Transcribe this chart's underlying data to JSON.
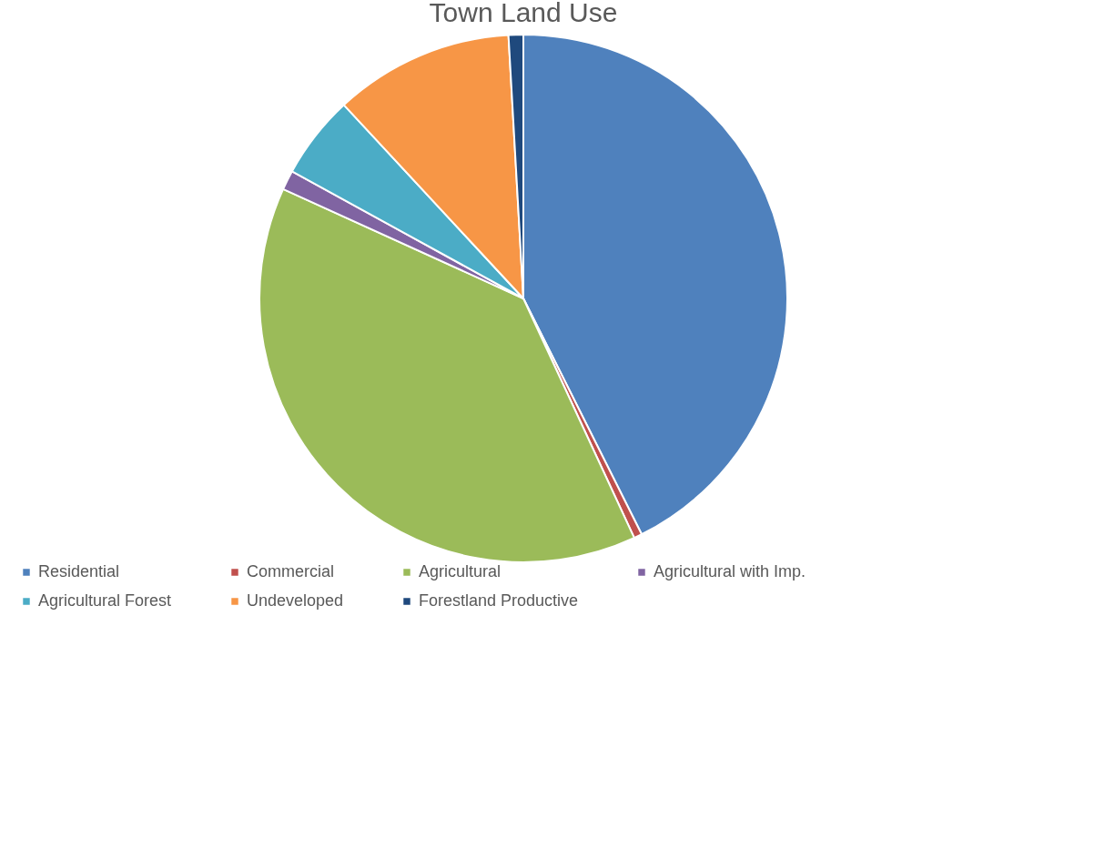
{
  "chart_data": {
    "type": "pie",
    "title": "Town Land Use",
    "categories": [
      "Residential",
      "Commercial",
      "Agricultural",
      "Agricultural with Imp.",
      "Agricultural Forest",
      "Undeveloped",
      "Forestland Productive"
    ],
    "values": [
      42.6,
      0.5,
      38.7,
      1.2,
      5.1,
      11,
      0.9
    ],
    "colors": [
      "#4f81bd",
      "#c0504d",
      "#9bbb59",
      "#8064a2",
      "#4bacc6",
      "#f79646",
      "#1f497d"
    ],
    "legend": "bottom"
  }
}
